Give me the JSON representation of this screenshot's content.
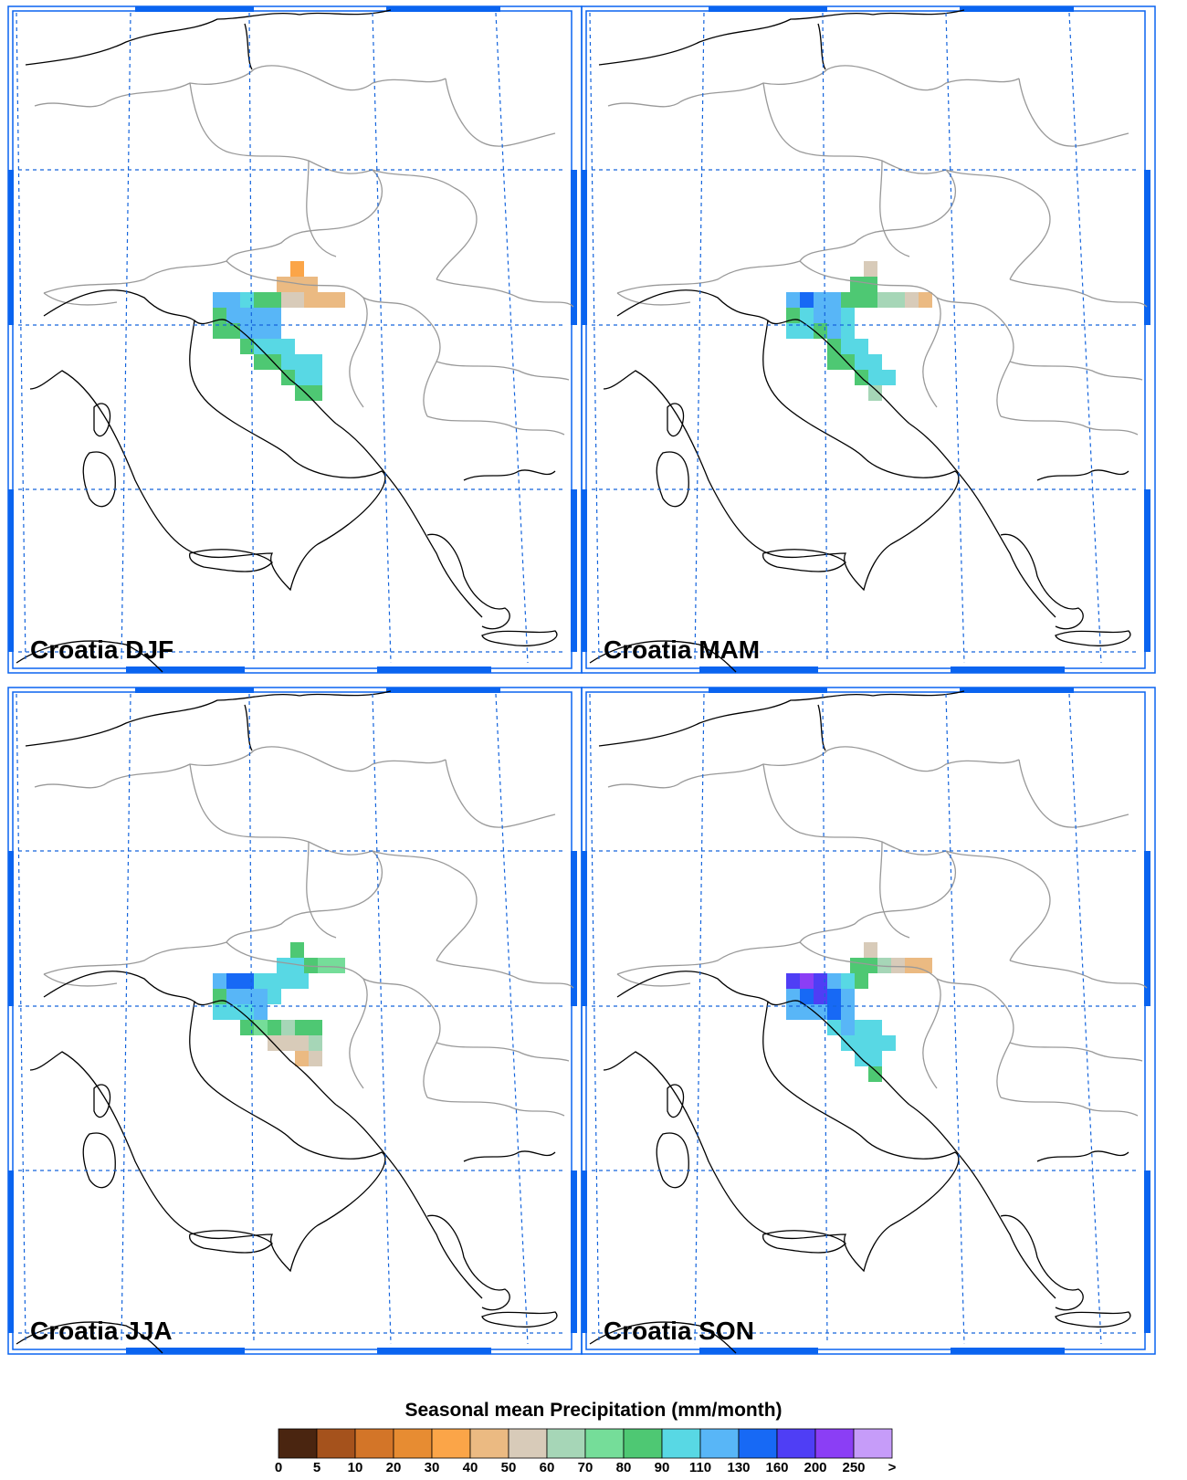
{
  "panels": [
    {
      "title": "Croatia DJF"
    },
    {
      "title": "Croatia MAM"
    },
    {
      "title": "Croatia JJA"
    },
    {
      "title": "Croatia SON"
    }
  ],
  "colorbar": {
    "title": "Seasonal mean Precipitation (mm/month)",
    "labels": [
      "0",
      "5",
      "10",
      "20",
      "30",
      "40",
      "50",
      "60",
      "70",
      "80",
      "90",
      "110",
      "130",
      "160",
      "200",
      "250",
      ">"
    ],
    "colors": [
      "#4a2510",
      "#a5521c",
      "#d37528",
      "#e78c32",
      "#fba548",
      "#ebba82",
      "#d8cbb9",
      "#a6d6b7",
      "#75dd99",
      "#4ec873",
      "#58d8e4",
      "#58b6f7",
      "#1769f5",
      "#4f3ef5",
      "#8b3ef5",
      "#c69cf9"
    ]
  },
  "theme": {
    "frame_blue": "#0a64f0",
    "grid_blue": "#1464dc",
    "coast": "#000000",
    "border": "#999999"
  }
}
